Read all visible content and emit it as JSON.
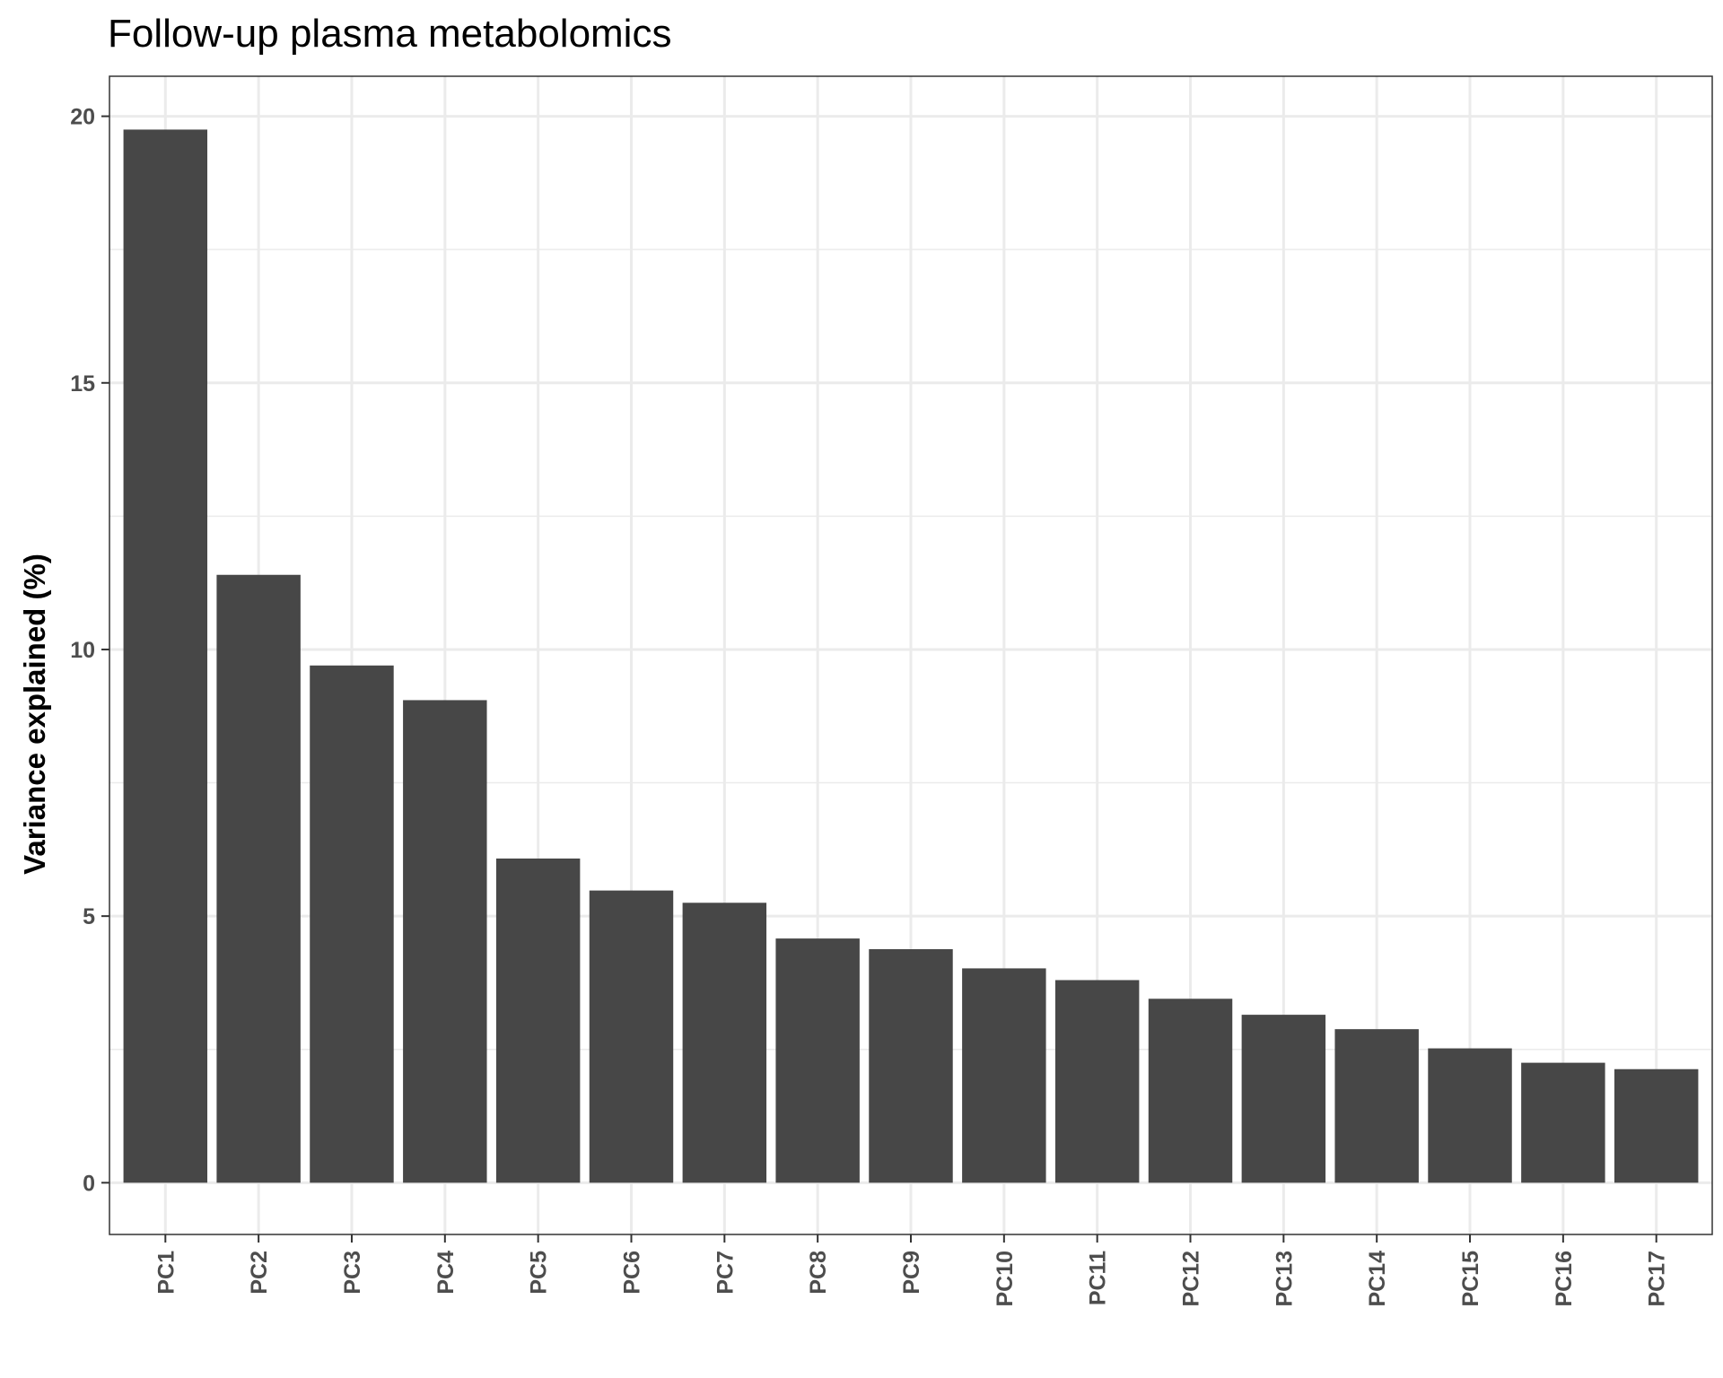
{
  "chart_data": {
    "type": "bar",
    "title": "Follow-up plasma metabolomics",
    "xlabel": "",
    "ylabel": "Variance explained (%)",
    "categories": [
      "PC1",
      "PC2",
      "PC3",
      "PC4",
      "PC5",
      "PC6",
      "PC7",
      "PC8",
      "PC9",
      "PC10",
      "PC11",
      "PC12",
      "PC13",
      "PC14",
      "PC15",
      "PC16",
      "PC17"
    ],
    "values": [
      19.75,
      11.4,
      9.7,
      9.05,
      6.08,
      5.48,
      5.25,
      4.58,
      4.38,
      4.02,
      3.8,
      3.45,
      3.15,
      2.88,
      2.52,
      2.25,
      2.13
    ],
    "ylim": [
      -0.97,
      20.75
    ],
    "yticks": [
      0,
      5,
      10,
      15,
      20
    ],
    "ytick_labels": [
      "0",
      "5",
      "10",
      "15",
      "20"
    ],
    "grid": true,
    "bar_color": "#474747",
    "theme": "bw"
  }
}
